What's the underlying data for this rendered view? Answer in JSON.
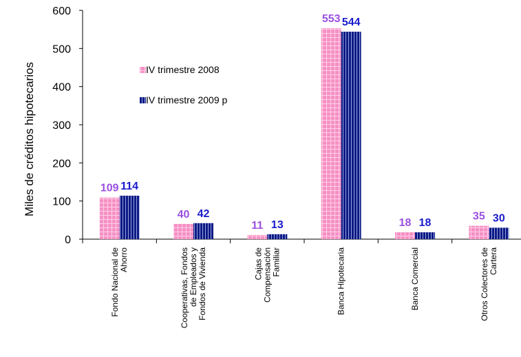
{
  "chart_data": {
    "type": "bar",
    "title": "",
    "ylabel": "Miles de créditos hipotecarios",
    "xlabel": "",
    "ylim": [
      0,
      600
    ],
    "yticks": [
      0,
      100,
      200,
      300,
      400,
      500,
      600
    ],
    "grid": false,
    "legend_position": "upper-left inside plot",
    "categories": [
      [
        "Fondo Nacional de",
        "Ahorro"
      ],
      [
        "Cooperativas, Fondos",
        "de Empleados y",
        "Fondos de Vivienda"
      ],
      [
        "Cajas de",
        "Compensación",
        "Familiar"
      ],
      [
        "Banca Hipotecaria"
      ],
      [
        "Banca Comercial"
      ],
      [
        "Otros Colectores de",
        "Cartera"
      ]
    ],
    "series": [
      {
        "name": "IV trimestre 2008",
        "values": [
          109,
          40,
          11,
          553,
          18,
          35
        ],
        "color": "#f48cc0",
        "label_color": "#9a4fe0",
        "pattern": "pink-dotted-grid"
      },
      {
        "name": "IV trimestre 2009 p",
        "values": [
          114,
          42,
          13,
          544,
          18,
          30
        ],
        "color": "#0a1a80",
        "label_color": "#1a1acc",
        "pattern": "navy-vertical-stripes"
      }
    ]
  }
}
